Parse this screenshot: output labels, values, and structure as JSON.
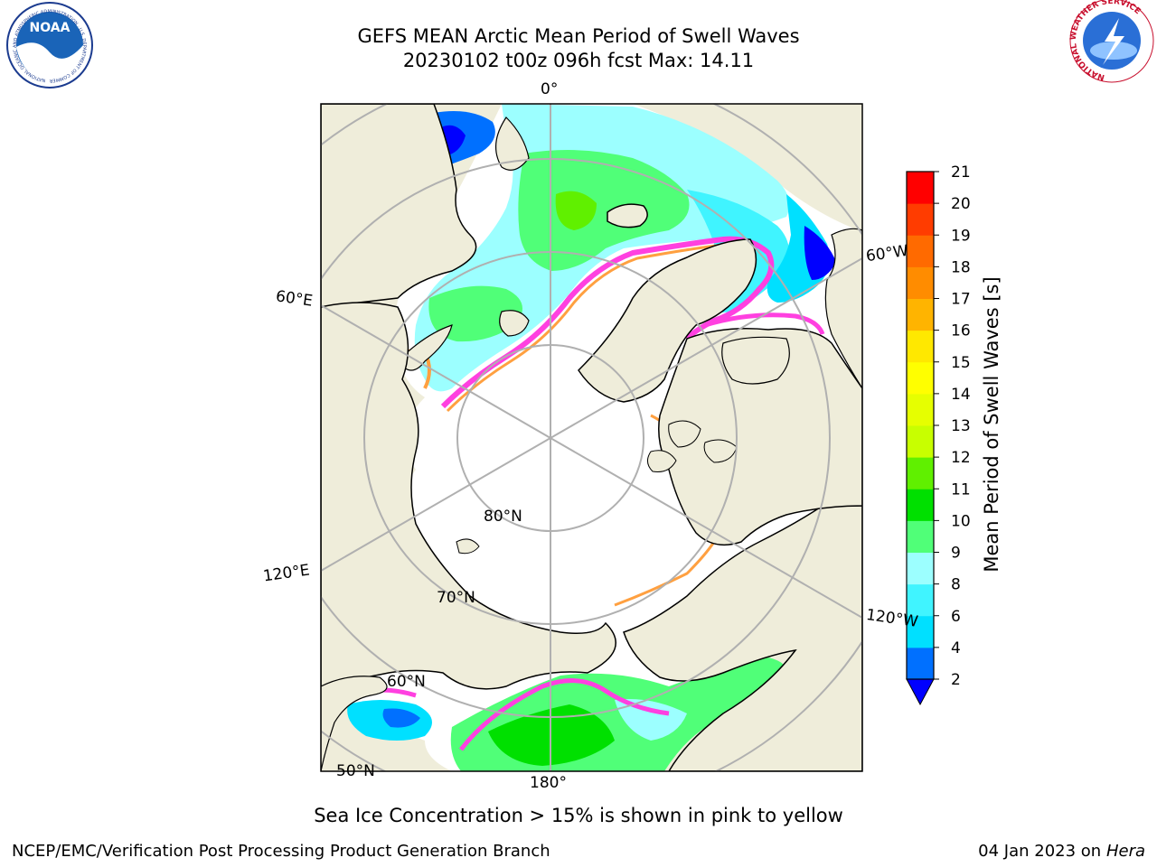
{
  "header": {
    "title_line1": "GEFS MEAN Arctic Mean Period of Swell Waves",
    "title_line2": "20230102 t00z 096h fcst   Max: 14.11"
  },
  "logos": {
    "left_text": "NOAA",
    "left_ring_text": "NATIONAL OCEANIC AND ATMOSPHERIC ADMINISTRATION · U.S. DEPARTMENT OF COMMERCE",
    "right_ring_text": "NATIONAL WEATHER SERVICE"
  },
  "map": {
    "longitude_labels": {
      "lon_0": "0°",
      "lon_60e": "60°E",
      "lon_120e": "120°E",
      "lon_180": "180°",
      "lon_60w": "60°W",
      "lon_120w": "120°W"
    },
    "latitude_labels": {
      "lat_80": "80°N",
      "lat_70": "70°N",
      "lat_60": "60°N",
      "lat_50": "50°N"
    },
    "colors": {
      "land": "#efedda",
      "ocean_no_data": "#ffffff",
      "graticule": "#b0b0b0",
      "coast": "#000000"
    }
  },
  "colorbar": {
    "label": "Mean Period of Swell Waves [s]",
    "ticks": [
      "2",
      "4",
      "6",
      "8",
      "9",
      "10",
      "11",
      "12",
      "13",
      "14",
      "15",
      "16",
      "17",
      "18",
      "19",
      "20",
      "21"
    ],
    "colors": [
      "#0070ff",
      "#00e0ff",
      "#40f4ff",
      "#9cffff",
      "#50ff78",
      "#00e000",
      "#60f000",
      "#c8ff00",
      "#e6ff00",
      "#ffff00",
      "#ffe800",
      "#ffb400",
      "#ff8c00",
      "#ff6a00",
      "#ff3c00",
      "#ff0000"
    ],
    "under_color": "#0000ff"
  },
  "footer": {
    "note": "Sea Ice Concentration > 15% is shown in pink to yellow",
    "left": "NCEP/EMC/Verification Post Processing Product Generation Branch",
    "right_prefix": "04 Jan 2023 on ",
    "right_machine": "Hera"
  }
}
